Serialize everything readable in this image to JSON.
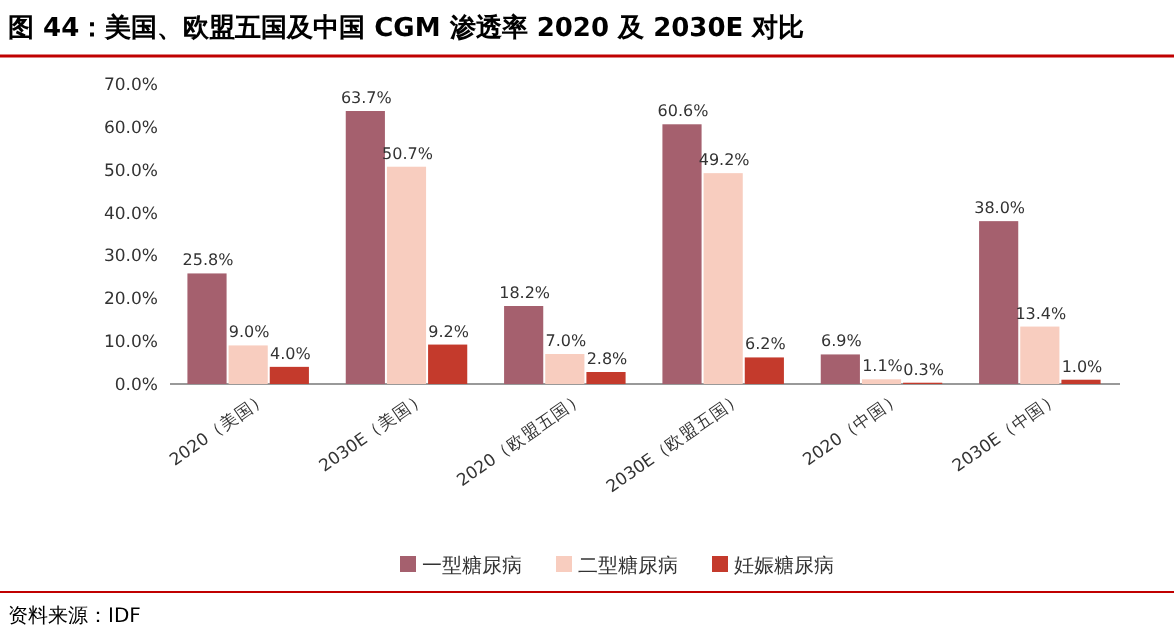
{
  "chart_data": {
    "type": "bar",
    "title": "图 44：美国、欧盟五国及中国 CGM 渗透率 2020 及 2030E 对比",
    "categories": [
      "2020（美国）",
      "2030E（美国）",
      "2020（欧盟五国）",
      "2030E（欧盟五国）",
      "2020（中国）",
      "2030E（中国）"
    ],
    "series": [
      {
        "name": "一型糖尿病",
        "color": "#a5606e",
        "values": [
          25.8,
          63.7,
          18.2,
          60.6,
          6.9,
          38.0
        ],
        "value_labels": [
          "25.8%",
          "63.7%",
          "18.2%",
          "60.6%",
          "6.9%",
          "38.0%"
        ]
      },
      {
        "name": "二型糖尿病",
        "color": "#f8cdbf",
        "values": [
          9.0,
          50.7,
          7.0,
          49.2,
          1.1,
          13.4
        ],
        "value_labels": [
          "9.0%",
          "50.7%",
          "7.0%",
          "49.2%",
          "1.1%",
          "13.4%"
        ]
      },
      {
        "name": "妊娠糖尿病",
        "color": "#c43a2c",
        "values": [
          4.0,
          9.2,
          2.8,
          6.2,
          0.3,
          1.0
        ],
        "value_labels": [
          "4.0%",
          "9.2%",
          "2.8%",
          "6.2%",
          "0.3%",
          "1.0%"
        ]
      }
    ],
    "ylim": [
      0,
      70
    ],
    "yticks": [
      {
        "value": 0,
        "label": "0.0%"
      },
      {
        "value": 10,
        "label": "10.0%"
      },
      {
        "value": 20,
        "label": "20.0%"
      },
      {
        "value": 30,
        "label": "30.0%"
      },
      {
        "value": 40,
        "label": "40.0%"
      },
      {
        "value": 50,
        "label": "50.0%"
      },
      {
        "value": 60,
        "label": "60.0%"
      },
      {
        "value": 70,
        "label": "70.0%"
      }
    ],
    "legend": "bottom",
    "annotations": [
      "资料来源：IDF"
    ]
  }
}
